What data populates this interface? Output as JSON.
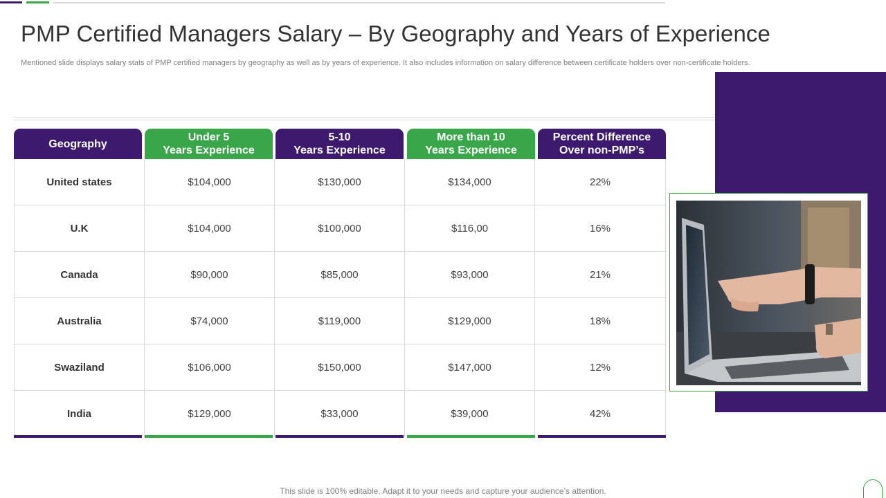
{
  "slide": {
    "title": "PMP Certified Managers Salary – By Geography and Years of Experience",
    "subtitle": "Mentioned slide displays salary stats of PMP  certified managers by geography as well as by years of experience. It also includes information on salary difference between certificate holders over non-certificate holders.",
    "footer": "This slide is 100% editable. Adapt it to your needs and capture your audience’s attention."
  },
  "colors": {
    "purple": "#3d1a6e",
    "green": "#3aa64a"
  },
  "table": {
    "headers": [
      {
        "lines": [
          "Geography"
        ]
      },
      {
        "lines": [
          "Under 5",
          "Years Experience"
        ]
      },
      {
        "lines": [
          "5-10",
          "Years Experience"
        ]
      },
      {
        "lines": [
          "More than 10",
          "Years Experience"
        ]
      },
      {
        "lines": [
          "Percent Difference",
          "Over non-PMP’s"
        ]
      }
    ],
    "rows": [
      [
        "United states",
        "$104,000",
        "$130,000",
        "$134,000",
        "22%"
      ],
      [
        "U.K",
        "$104,000",
        "$100,000",
        "$116,00",
        "16%"
      ],
      [
        "Canada",
        "$90,000",
        "$85,000",
        "$93,000",
        "21%"
      ],
      [
        "Australia",
        "$74,000",
        "$119,000",
        "$129,000",
        "18%"
      ],
      [
        "Swaziland",
        "$106,000",
        "$150,000",
        "$147,000",
        "12%"
      ],
      [
        "India",
        "$129,000",
        "$33,000",
        "$39,000",
        "42%"
      ]
    ]
  },
  "image": {
    "icon": "laptop-photo"
  }
}
